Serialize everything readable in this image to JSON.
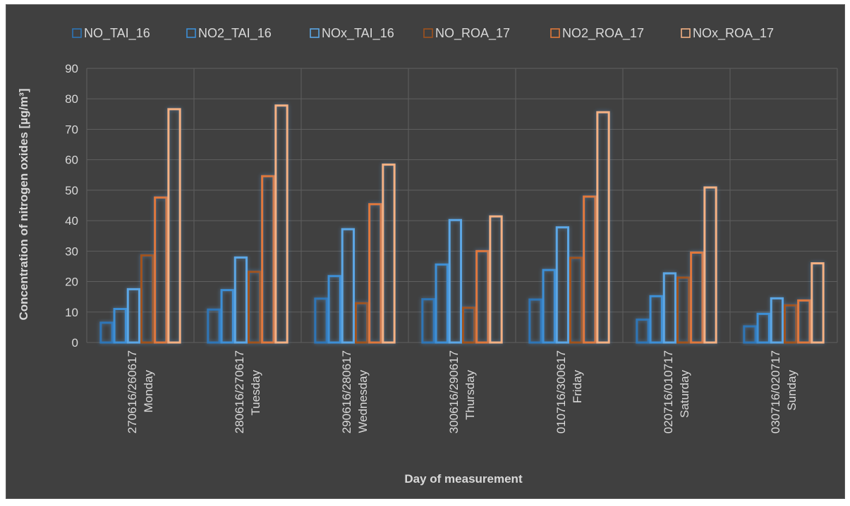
{
  "chart_data": {
    "type": "bar",
    "title": "",
    "xlabel": "Day of measurement",
    "ylabel": "Concentration of nitrogen oxides [µg/m³]",
    "ylim": [
      0,
      90
    ],
    "yticks": [
      0,
      10,
      20,
      30,
      40,
      50,
      60,
      70,
      80,
      90
    ],
    "grid": true,
    "legend_position": "top",
    "categories": [
      [
        "270616/260617",
        "Monday"
      ],
      [
        "280616/270617",
        "Tuesday"
      ],
      [
        "290616/280617",
        "Wednesday"
      ],
      [
        "300616/290617",
        "Thursday"
      ],
      [
        "010716/300617",
        "Friday"
      ],
      [
        "020716/010717",
        "Saturday"
      ],
      [
        "030716/020717",
        "Sunday"
      ]
    ],
    "series": [
      {
        "name": "NO_TAI_16",
        "color": "#2e75b6",
        "values": [
          6.5,
          10.8,
          14.4,
          14.2,
          14.1,
          7.5,
          5.3
        ]
      },
      {
        "name": "NO2_TAI_16",
        "color": "#3d8fd6",
        "values": [
          11.0,
          17.2,
          21.8,
          25.6,
          23.8,
          15.2,
          9.4
        ]
      },
      {
        "name": "NOx_TAI_16",
        "color": "#5ba7e6",
        "values": [
          17.5,
          27.9,
          37.2,
          40.2,
          37.8,
          22.7,
          14.5
        ]
      },
      {
        "name": "NO_ROA_17",
        "color": "#a0521e",
        "values": [
          28.6,
          23.2,
          12.9,
          11.4,
          27.8,
          21.3,
          12.2
        ]
      },
      {
        "name": "NO2_ROA_17",
        "color": "#e0783a",
        "values": [
          47.6,
          54.6,
          45.4,
          30.0,
          47.9,
          29.5,
          13.8
        ]
      },
      {
        "name": "NOx_ROA_17",
        "color": "#f4b183",
        "values": [
          76.6,
          77.8,
          58.4,
          41.4,
          75.6,
          50.9,
          26.0
        ]
      }
    ]
  }
}
